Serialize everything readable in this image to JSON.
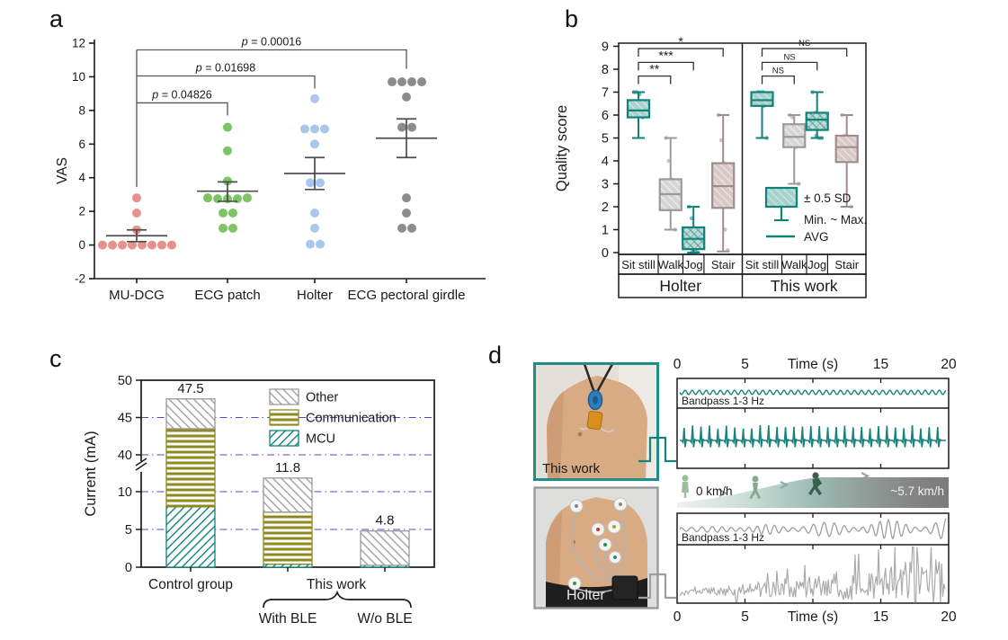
{
  "panels": {
    "a": {
      "label": "a"
    },
    "b": {
      "label": "b"
    },
    "c": {
      "label": "c"
    },
    "d": {
      "label": "d"
    }
  },
  "chart_data": [
    {
      "id": "a",
      "type": "scatter",
      "title": "",
      "ylabel": "VAS",
      "ylim": [
        -2,
        12
      ],
      "yticks": [
        -2,
        0,
        2,
        4,
        6,
        8,
        10,
        12
      ],
      "categories": [
        "MU-DCG",
        "ECG patch",
        "Holter",
        "ECG pectoral girdle"
      ],
      "colors": [
        "#E8918A",
        "#7CC464",
        "#A9C7EA",
        "#8C8C8C"
      ],
      "points": [
        [
          [
            0,
            2.8
          ],
          [
            0,
            1.9
          ],
          [
            0,
            0.9
          ],
          [
            -38,
            0
          ],
          [
            -27,
            0
          ],
          [
            -16,
            0
          ],
          [
            -5,
            0
          ],
          [
            6,
            0
          ],
          [
            17,
            0
          ],
          [
            28,
            0
          ],
          [
            39,
            0
          ]
        ],
        [
          [
            0,
            7.0
          ],
          [
            0,
            5.6
          ],
          [
            0,
            3.8
          ],
          [
            -22,
            2.8
          ],
          [
            -11,
            2.75
          ],
          [
            0,
            2.75
          ],
          [
            11,
            2.75
          ],
          [
            22,
            2.8
          ],
          [
            -5,
            1.9
          ],
          [
            6,
            1.9
          ],
          [
            -5,
            1.0
          ],
          [
            6,
            1.0
          ]
        ],
        [
          [
            0,
            8.7
          ],
          [
            -11,
            6.9
          ],
          [
            0,
            6.9
          ],
          [
            11,
            6.9
          ],
          [
            0,
            6.0
          ],
          [
            -5,
            3.7
          ],
          [
            6,
            3.7
          ],
          [
            0,
            1.9
          ],
          [
            0,
            1.0
          ],
          [
            -5,
            0.05
          ],
          [
            6,
            0.05
          ]
        ],
        [
          [
            -16,
            9.7
          ],
          [
            -5,
            9.7
          ],
          [
            6,
            9.7
          ],
          [
            17,
            9.7
          ],
          [
            0,
            8.8
          ],
          [
            -5,
            7.0
          ],
          [
            6,
            7.0
          ],
          [
            0,
            2.8
          ],
          [
            0,
            1.9
          ],
          [
            -5,
            1.0
          ],
          [
            6,
            1.0
          ]
        ]
      ],
      "means": [
        0.55,
        3.2,
        4.25,
        6.35
      ],
      "err_low": [
        0.2,
        2.6,
        3.3,
        5.2
      ],
      "err_high": [
        0.9,
        3.75,
        5.2,
        7.5
      ],
      "significance": [
        {
          "to": 1,
          "label": "p = 0.04826",
          "y": 8.45,
          "drop": 14
        },
        {
          "to": 2,
          "label": "p = 0.01698",
          "y": 10.05,
          "drop": 14
        },
        {
          "to": 3,
          "label": "p = 0.00016",
          "y": 11.6,
          "drop": 21
        }
      ]
    },
    {
      "id": "b",
      "type": "box",
      "ylabel": "Quality score",
      "ylim": [
        0,
        9
      ],
      "yticks": [
        0,
        1,
        2,
        3,
        4,
        5,
        6,
        7,
        8,
        9
      ],
      "sig_y": [
        7.7,
        8.3,
        8.9
      ],
      "legend": {
        "box": "± 0.5 SD",
        "whisker": "Min. ~ Max.",
        "avg": "AVG"
      },
      "groups": [
        {
          "name": "Holter",
          "boxes": [
            {
              "activity": "Sit still",
              "style": "teal",
              "min": 5,
              "q1": 5.9,
              "avg": 6.2,
              "q3": 6.65,
              "max": 7,
              "pts": [
                7,
                7,
                6.9,
                6.5,
                6.2,
                6.1,
                6,
                5.9
              ]
            },
            {
              "activity": "Walk",
              "style": "gray",
              "min": 1,
              "q1": 1.85,
              "avg": 2.55,
              "q3": 3.2,
              "max": 5,
              "pts": [
                5,
                4,
                3.2,
                3,
                2.5,
                2.1,
                1.9,
                1
              ]
            },
            {
              "activity": "Jog",
              "style": "tealcross",
              "min": 0,
              "q1": 0.15,
              "avg": 0.6,
              "q3": 1.1,
              "max": 2,
              "pts": [
                2,
                1.5,
                1,
                0.6,
                0.2,
                0.05,
                0.05,
                0
              ]
            },
            {
              "activity": "Stair",
              "style": "mauve",
              "min": 0.05,
              "q1": 1.95,
              "avg": 2.9,
              "q3": 3.9,
              "max": 6,
              "pts": [
                6,
                4.9,
                3.9,
                3,
                2.5,
                2,
                1,
                0.1
              ]
            }
          ],
          "significance": [
            {
              "to": 1,
              "label": "**"
            },
            {
              "to": 2,
              "label": "***"
            },
            {
              "to": 3,
              "label": "*"
            }
          ]
        },
        {
          "name": "This work",
          "boxes": [
            {
              "activity": "Sit still",
              "style": "teal",
              "min": 5,
              "q1": 6.4,
              "avg": 6.65,
              "q3": 7,
              "max": 7,
              "pts": [
                7,
                7,
                7,
                6.9,
                6.8,
                6.5,
                6.4,
                5
              ]
            },
            {
              "activity": "Walk",
              "style": "gray",
              "min": 3,
              "q1": 4.6,
              "avg": 5.05,
              "q3": 5.6,
              "max": 6,
              "pts": [
                6,
                5.9,
                5.5,
                5.1,
                5,
                4.9,
                4.6,
                3
              ]
            },
            {
              "activity": "Jog",
              "style": "tealcross",
              "min": 5,
              "q1": 5.35,
              "avg": 5.8,
              "q3": 6.1,
              "max": 7,
              "pts": [
                7,
                6.1,
                6,
                5.9,
                5.5,
                5.1,
                5,
                5
              ]
            },
            {
              "activity": "Stair",
              "style": "mauve",
              "min": 2,
              "q1": 3.95,
              "avg": 4.6,
              "q3": 5.1,
              "max": 6,
              "pts": [
                6,
                5.1,
                5,
                4.8,
                4.5,
                4.1,
                4,
                2
              ]
            }
          ],
          "significance": [
            {
              "to": 1,
              "label": "NS"
            },
            {
              "to": 2,
              "label": "NS"
            },
            {
              "to": 3,
              "label": "NS"
            }
          ]
        }
      ]
    },
    {
      "id": "c",
      "type": "stacked-bar",
      "ylabel": "Current (mA)",
      "yticks_lower": [
        0,
        5,
        10
      ],
      "yticks_upper": [
        40,
        45,
        50
      ],
      "break_between": [
        12,
        40
      ],
      "gridlines": [
        5,
        10,
        40,
        45
      ],
      "legend": [
        {
          "key": "other",
          "label": "Other"
        },
        {
          "key": "communication",
          "label": "Communication"
        },
        {
          "key": "mcu",
          "label": "MCU"
        }
      ],
      "bars": [
        {
          "label": "Control group",
          "total": 47.5,
          "mcu": 8.0,
          "communication": 35.5,
          "other": 4.0
        },
        {
          "label": "With BLE",
          "total": 11.8,
          "mcu": 0.4,
          "communication": 6.9,
          "other": 4.5
        },
        {
          "label": "W/o BLE",
          "total": 4.8,
          "mcu": 0.25,
          "communication": 0,
          "other": 4.55
        }
      ],
      "xlabels": [
        "Control group",
        "This work"
      ],
      "sub_labels": [
        "With BLE",
        "W/o BLE"
      ],
      "colors": {
        "mcu": "#0E837B",
        "communication": "#8F8A1E",
        "other": "#9A9A9A",
        "grid": "#4A4ACF"
      }
    },
    {
      "id": "d",
      "type": "waveforms",
      "photos": [
        {
          "label": "This work"
        },
        {
          "label": "Holter"
        }
      ],
      "time_axis": {
        "labels": [
          "0",
          "5",
          "Time (s)",
          "15",
          "20"
        ],
        "ticks": [
          0,
          5,
          10,
          15,
          20
        ],
        "range": [
          0,
          20
        ]
      },
      "trace_panels": [
        {
          "device": "This work",
          "color": "#17847C",
          "bandpass_label": "Bandpass 1-3 Hz"
        },
        {
          "device": "Holter",
          "color": "#9E9E9E",
          "bandpass_label": "Bandpass 1-3 Hz"
        }
      ],
      "speed_bar": {
        "start_label": "0 km/h",
        "end_label": "~5.7 km/h"
      }
    }
  ]
}
